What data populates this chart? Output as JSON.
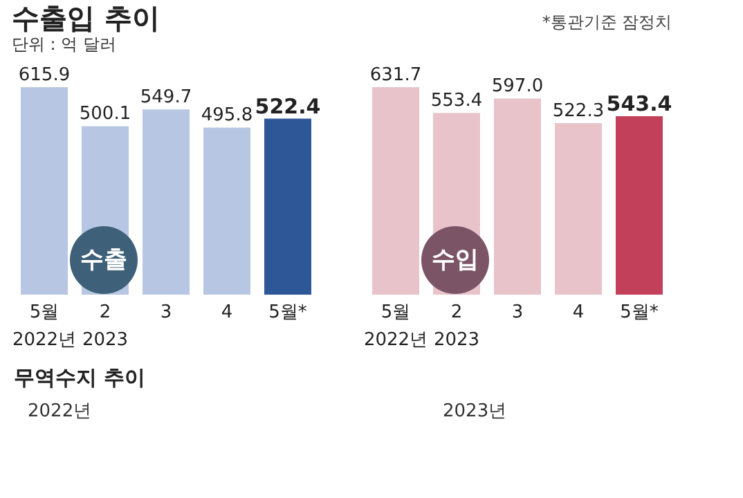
{
  "chart_data": [
    {
      "type": "bar",
      "title": "수출입 추이",
      "subtitle": "단위 : 억 달러",
      "annotations": [
        "수출"
      ],
      "categories": [
        "5월\n2022년",
        "2\n2023",
        "3",
        "4",
        "5월*"
      ],
      "values": [
        615.9,
        500.1,
        549.7,
        495.8,
        522.4
      ],
      "colors": [
        "#b7c6e2",
        "#b7c6e2",
        "#b7c6e2",
        "#b7c6e2",
        "#2e5797"
      ],
      "value_labels": [
        "615.9",
        "500.1",
        "549.7",
        "495.8",
        "522.4"
      ]
    },
    {
      "type": "bar",
      "annotations": [
        "*통관기준 잠정치",
        "수입"
      ],
      "categories": [
        "5월\n2022년",
        "2\n2023",
        "3",
        "4",
        "5월*"
      ],
      "values": [
        631.7,
        553.4,
        597.0,
        522.3,
        543.4
      ],
      "colors": [
        "#e8c3ca",
        "#e8c3ca",
        "#e8c3ca",
        "#e8c3ca",
        "#c2405a"
      ],
      "value_labels": [
        "631.7",
        "553.4",
        "597.0",
        "522.3",
        "543.4"
      ]
    },
    {
      "type": "other",
      "title": "무역수지 추이",
      "annotations": [
        "2022년",
        "2023년"
      ]
    }
  ]
}
